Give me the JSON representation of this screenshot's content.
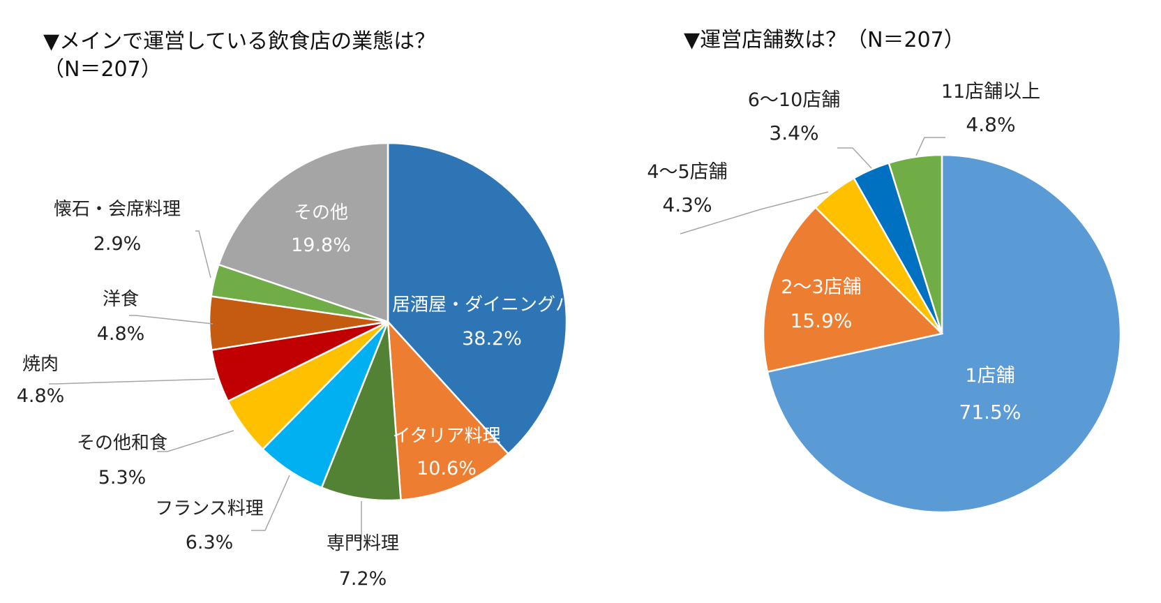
{
  "charts": [
    {
      "title_line1": "▼メインで運営している飲食店の業態は？",
      "title_line2": "（N＝207）",
      "chart_data": {
        "type": "pie",
        "start_angle_deg": 0,
        "direction": "clockwise",
        "slices": [
          {
            "label": "居酒屋・ダイニングバー",
            "value": 38.2,
            "value_label": "38.2%",
            "color": "#2E75B6"
          },
          {
            "label": "イタリア料理",
            "value": 10.6,
            "value_label": "10.6%",
            "color": "#ED7D31"
          },
          {
            "label": "専門料理",
            "value": 7.2,
            "value_label": "7.2%",
            "color": "#548235"
          },
          {
            "label": "フランス料理",
            "value": 6.3,
            "value_label": "6.3%",
            "color": "#00B0F0"
          },
          {
            "label": "その他和食",
            "value": 5.3,
            "value_label": "5.3%",
            "color": "#FFC000"
          },
          {
            "label": "焼肉",
            "value": 4.8,
            "value_label": "4.8%",
            "color": "#C00000"
          },
          {
            "label": "洋食",
            "value": 4.8,
            "value_label": "4.8%",
            "color": "#C55A11"
          },
          {
            "label": "懐石・会席料理",
            "value": 2.9,
            "value_label": "2.9%",
            "color": "#70AD47"
          },
          {
            "label": "その他",
            "value": 19.8,
            "value_label": "19.8%",
            "color": "#A5A5A5"
          }
        ]
      }
    },
    {
      "title_line1": "▼運営店舗数は？（N＝207）",
      "chart_data": {
        "type": "pie",
        "start_angle_deg": 0,
        "direction": "clockwise",
        "slices": [
          {
            "label": "1店舗",
            "value": 71.5,
            "value_label": "71.5%",
            "color": "#5B9BD5"
          },
          {
            "label": "2～3店舗",
            "value": 15.9,
            "value_label": "15.9%",
            "color": "#ED7D31"
          },
          {
            "label": "4～5店舗",
            "value": 4.3,
            "value_label": "4.3%",
            "color": "#FFC000"
          },
          {
            "label": "6～10店舗",
            "value": 3.4,
            "value_label": "3.4%",
            "color": "#0070C0"
          },
          {
            "label": "11店舗以上",
            "value": 4.8,
            "value_label": "4.8%",
            "color": "#70AD47"
          }
        ]
      }
    }
  ]
}
